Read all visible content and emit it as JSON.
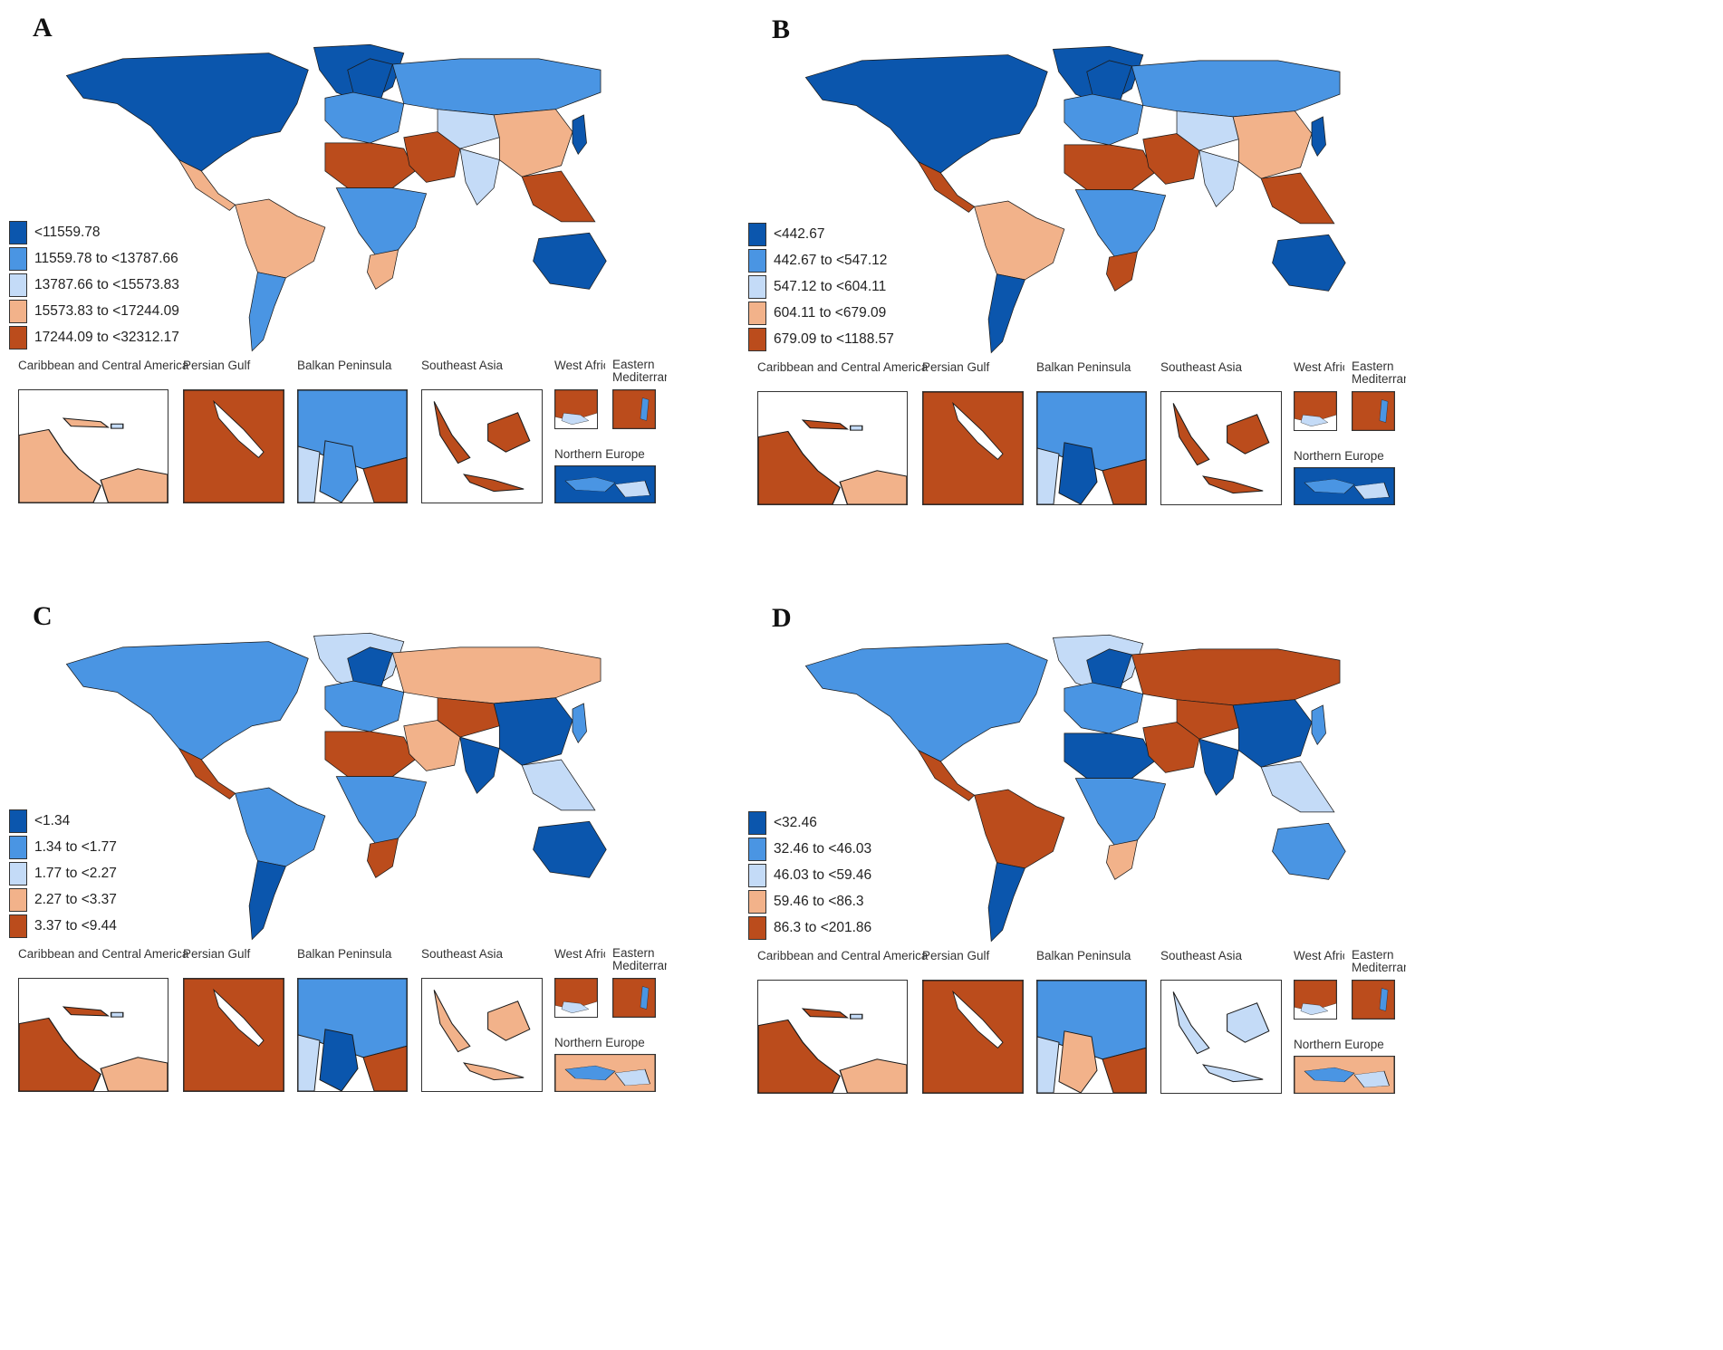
{
  "colors": {
    "c1": "#0b56ad",
    "c2": "#4a95e3",
    "c3": "#c4dbf7",
    "c4": "#f2b28a",
    "c5": "#bb4c1c"
  },
  "inset_titles": {
    "caribbean": "Caribbean and Central America",
    "gulf": "Persian Gulf",
    "balkan": "Balkan Peninsula",
    "sea": "Southeast Asia",
    "west_africa": "West Africa",
    "eastern_med": "Eastern Mediterranean",
    "northern_europe": "Northern Europe"
  },
  "panels": [
    {
      "label": "A",
      "legend": [
        "<11559.78",
        "11559.78 to <13787.66",
        "13787.66 to <15573.83",
        "15573.83 to <17244.09",
        "17244.09 to <32312.17"
      ],
      "regions": {
        "north_america": "c1",
        "greenland": "c1",
        "central_america": "c4",
        "south_america_north": "c4",
        "south_america_south": "c2",
        "europe": "c2",
        "scandinavia": "c1",
        "russia": "c2",
        "middle_east": "c5",
        "north_africa": "c5",
        "sub_saharan_africa": "c2",
        "southern_africa": "c4",
        "central_asia": "c3",
        "china": "c4",
        "south_asia": "c3",
        "southeast_asia": "c5",
        "japan": "c1",
        "australia": "c1"
      },
      "insets": {
        "caribbean": "c4",
        "gulf": "c5",
        "balkan": "c2",
        "sea": "c5",
        "west_africa": "c5",
        "eastern_med": "c5",
        "northern_europe": "c1"
      }
    },
    {
      "label": "B",
      "legend": [
        "<442.67",
        "442.67 to <547.12",
        "547.12 to <604.11",
        "604.11 to <679.09",
        "679.09 to <1188.57"
      ],
      "regions": {
        "north_america": "c1",
        "greenland": "c1",
        "central_america": "c5",
        "south_america_north": "c4",
        "south_america_south": "c1",
        "europe": "c2",
        "scandinavia": "c1",
        "russia": "c2",
        "middle_east": "c5",
        "north_africa": "c5",
        "sub_saharan_africa": "c2",
        "southern_africa": "c5",
        "central_asia": "c3",
        "china": "c4",
        "south_asia": "c3",
        "southeast_asia": "c5",
        "japan": "c1",
        "australia": "c1"
      },
      "insets": {
        "caribbean": "c5",
        "gulf": "c5",
        "balkan": "c1",
        "sea": "c5",
        "west_africa": "c5",
        "eastern_med": "c5",
        "northern_europe": "c1"
      }
    },
    {
      "label": "C",
      "legend": [
        "<1.34",
        "1.34 to <1.77",
        "1.77 to <2.27",
        "2.27 to <3.37",
        "3.37 to <9.44"
      ],
      "regions": {
        "north_america": "c2",
        "greenland": "c3",
        "central_america": "c5",
        "south_america_north": "c2",
        "south_america_south": "c1",
        "europe": "c2",
        "scandinavia": "c1",
        "russia": "c4",
        "middle_east": "c4",
        "north_africa": "c5",
        "sub_saharan_africa": "c2",
        "southern_africa": "c5",
        "central_asia": "c5",
        "china": "c1",
        "south_asia": "c1",
        "southeast_asia": "c3",
        "japan": "c2",
        "australia": "c1"
      },
      "insets": {
        "caribbean": "c5",
        "gulf": "c5",
        "balkan": "c1",
        "sea": "c4",
        "west_africa": "c5",
        "eastern_med": "c5",
        "northern_europe": "c4"
      }
    },
    {
      "label": "D",
      "legend": [
        "<32.46",
        "32.46 to <46.03",
        "46.03 to <59.46",
        "59.46 to <86.3",
        "86.3 to <201.86"
      ],
      "regions": {
        "north_america": "c2",
        "greenland": "c3",
        "central_america": "c5",
        "south_america_north": "c5",
        "south_america_south": "c1",
        "europe": "c2",
        "scandinavia": "c1",
        "russia": "c5",
        "middle_east": "c5",
        "north_africa": "c1",
        "sub_saharan_africa": "c2",
        "southern_africa": "c4",
        "central_asia": "c5",
        "china": "c1",
        "south_asia": "c1",
        "southeast_asia": "c3",
        "japan": "c2",
        "australia": "c2"
      },
      "insets": {
        "caribbean": "c5",
        "gulf": "c5",
        "balkan": "c4",
        "sea": "c3",
        "west_africa": "c5",
        "eastern_med": "c5",
        "northern_europe": "c4"
      }
    }
  ]
}
